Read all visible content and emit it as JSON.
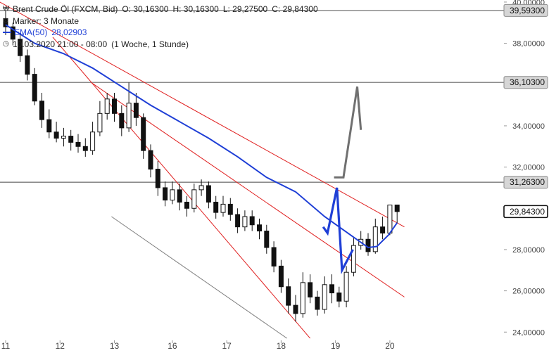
{
  "legend": {
    "instrument": "Brent Crude Öl (FXCM, Bid)",
    "open": "O: 30,16300",
    "high": "H: 30,16300",
    "low": "L: 29,27500",
    "close": "C: 29,84300",
    "marker": "Marker: 3 Monate",
    "ema_label": "EMA(50)",
    "ema_value": "28,02903",
    "timeframe_date": "10.03.2020 21:00 - 08:00",
    "timeframe_period": "(1 Woche, 1 Stunde)"
  },
  "colors": {
    "ema": "#1f3fd6",
    "trendline_red": "#e02020",
    "trendline_gray": "#808080",
    "horizontal": "#8c8c8c",
    "scenario_blue": "#1f3fd6",
    "scenario_gray": "#707070",
    "candle": "#111111"
  },
  "chart_data": {
    "type": "candlestick",
    "ylim": [
      23.6,
      40.1
    ],
    "y_ticks": [
      "24,00000",
      "26,00000",
      "28,00000",
      "30,00000",
      "32,00000",
      "34,00000",
      "36,00000",
      "38,00000",
      "40,00000"
    ],
    "x_ticks": [
      "11",
      "12",
      "13",
      "16",
      "17",
      "18",
      "19",
      "20"
    ],
    "price_tags": [
      {
        "label": "39,59300",
        "value": 39.593,
        "style": "gray"
      },
      {
        "label": "36,10300",
        "value": 36.103,
        "style": "gray"
      },
      {
        "label": "31,26300",
        "value": 31.263,
        "style": "gray"
      },
      {
        "label": "29,84300",
        "value": 29.843,
        "style": "dark"
      }
    ],
    "horizontal_lines": [
      39.593,
      36.103,
      31.263
    ],
    "ema50": [
      [
        0,
        38.9
      ],
      [
        1,
        38.0
      ],
      [
        2,
        37.5
      ],
      [
        3,
        36.8
      ],
      [
        4,
        35.9
      ],
      [
        5,
        35.0
      ],
      [
        6,
        34.2
      ],
      [
        7,
        33.4
      ],
      [
        8,
        32.5
      ],
      [
        9,
        31.5
      ],
      [
        10,
        30.8
      ],
      [
        11,
        29.6
      ],
      [
        12,
        28.6
      ],
      [
        12.5,
        28.1
      ],
      [
        12.8,
        28.15
      ],
      [
        13.2,
        28.7
      ],
      [
        13.5,
        29.3
      ]
    ],
    "candles": [
      [
        39.2,
        38.8,
        39.6,
        38.4
      ],
      [
        38.8,
        38.2,
        39.0,
        37.9
      ],
      [
        38.2,
        37.4,
        38.5,
        37.1
      ],
      [
        37.4,
        36.5,
        37.7,
        36.2
      ],
      [
        36.5,
        35.2,
        36.8,
        35.0
      ],
      [
        35.2,
        34.3,
        35.6,
        33.9
      ],
      [
        34.3,
        33.7,
        34.8,
        33.4
      ],
      [
        33.7,
        33.4,
        34.2,
        33.2
      ],
      [
        33.4,
        33.5,
        33.9,
        33.0
      ],
      [
        33.5,
        33.2,
        33.8,
        32.8
      ],
      [
        33.2,
        33.0,
        33.6,
        32.7
      ],
      [
        33.0,
        32.8,
        33.4,
        32.5
      ],
      [
        32.8,
        33.7,
        34.2,
        32.6
      ],
      [
        33.7,
        34.6,
        35.2,
        33.5
      ],
      [
        34.6,
        35.3,
        35.6,
        34.3
      ],
      [
        35.3,
        34.6,
        35.6,
        34.2
      ],
      [
        34.6,
        33.9,
        35.0,
        33.5
      ],
      [
        33.9,
        35.1,
        36.1,
        33.7
      ],
      [
        35.1,
        34.4,
        35.6,
        34.0
      ],
      [
        34.4,
        32.8,
        34.6,
        32.4
      ],
      [
        32.8,
        31.9,
        33.1,
        31.5
      ],
      [
        31.9,
        31.0,
        32.3,
        30.6
      ],
      [
        31.0,
        30.4,
        31.3,
        30.1
      ],
      [
        30.4,
        30.9,
        31.3,
        30.2
      ],
      [
        30.9,
        30.3,
        31.2,
        29.9
      ],
      [
        30.3,
        30.0,
        30.6,
        29.6
      ],
      [
        30.0,
        30.9,
        31.2,
        29.8
      ],
      [
        30.9,
        31.1,
        31.4,
        30.6
      ],
      [
        31.1,
        30.3,
        31.3,
        30.0
      ],
      [
        30.3,
        29.8,
        30.6,
        29.5
      ],
      [
        29.8,
        30.2,
        30.6,
        29.6
      ],
      [
        30.2,
        29.7,
        30.5,
        29.4
      ],
      [
        29.7,
        29.1,
        30.0,
        28.8
      ],
      [
        29.1,
        29.6,
        29.9,
        28.9
      ],
      [
        29.6,
        29.2,
        29.9,
        28.9
      ],
      [
        29.2,
        28.9,
        29.5,
        28.5
      ],
      [
        28.9,
        28.1,
        29.2,
        27.8
      ],
      [
        28.1,
        27.2,
        28.4,
        26.9
      ],
      [
        27.2,
        26.2,
        27.5,
        25.9
      ],
      [
        26.2,
        25.3,
        26.6,
        24.9
      ],
      [
        25.3,
        24.9,
        25.8,
        24.5
      ],
      [
        24.9,
        26.4,
        26.9,
        24.7
      ],
      [
        26.4,
        25.7,
        26.8,
        25.4
      ],
      [
        25.7,
        25.1,
        26.0,
        24.8
      ],
      [
        25.1,
        26.3,
        26.7,
        24.9
      ],
      [
        26.3,
        25.9,
        26.8,
        25.4
      ],
      [
        25.9,
        25.5,
        26.2,
        25.2
      ],
      [
        25.5,
        26.9,
        27.2,
        25.2
      ],
      [
        26.9,
        28.2,
        28.6,
        26.7
      ],
      [
        28.2,
        28.5,
        28.9,
        28.0
      ],
      [
        28.5,
        27.9,
        28.8,
        27.7
      ],
      [
        27.9,
        29.1,
        29.5,
        27.8
      ],
      [
        29.1,
        28.8,
        29.6,
        28.5
      ],
      [
        28.8,
        30.16,
        30.16,
        28.7
      ],
      [
        30.163,
        29.843,
        30.163,
        29.275
      ]
    ],
    "trendlines": [
      {
        "color": "red",
        "from": [
          -0.8,
          40.0
        ],
        "to": [
          55.0,
          29.1
        ]
      },
      {
        "color": "red",
        "from": [
          11.8,
          36.1
        ],
        "to": [
          55.0,
          25.7
        ]
      },
      {
        "color": "red",
        "from": [
          6.5,
          38.3
        ],
        "to": [
          42.0,
          23.7
        ]
      },
      {
        "color": "gray",
        "from": [
          14.6,
          29.6
        ],
        "to": [
          38.8,
          23.7
        ]
      }
    ],
    "scenario_blue": [
      [
        43.8,
        29.1
      ],
      [
        44.4,
        28.8
      ],
      [
        45.7,
        31.0
      ],
      [
        46.4,
        27.0
      ],
      [
        47.9,
        28.0
      ]
    ],
    "scenario_gray": [
      [
        45.3,
        31.5
      ],
      [
        46.6,
        31.5
      ],
      [
        48.5,
        35.9
      ],
      [
        49.0,
        33.8
      ]
    ]
  }
}
